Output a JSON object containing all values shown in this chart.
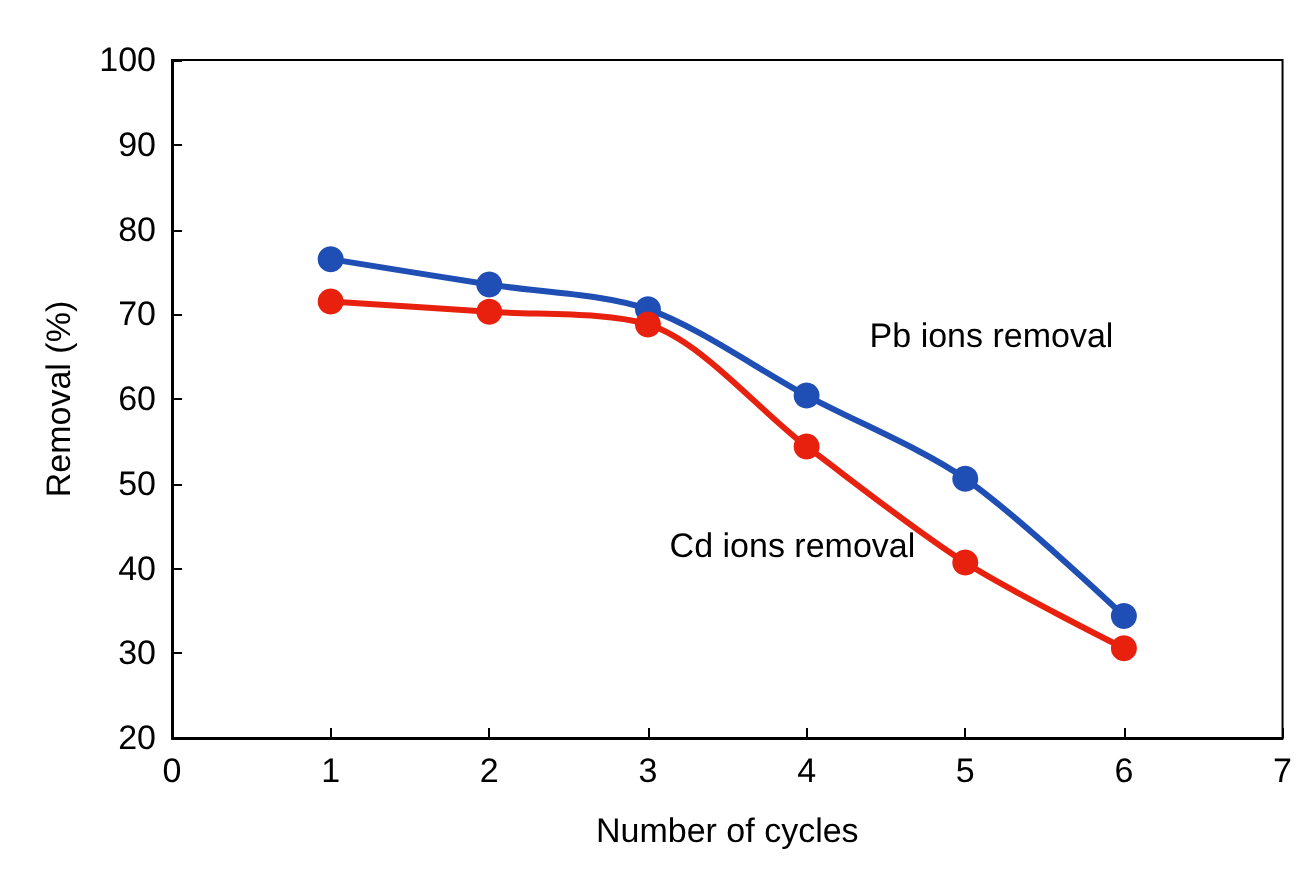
{
  "chart_data": {
    "type": "line",
    "xlabel": "Number of cycles",
    "ylabel": "Removal (%)",
    "x": [
      1,
      2,
      3,
      4,
      5,
      6
    ],
    "series": [
      {
        "name": "Pb ions removal",
        "color": "#1f4fb4",
        "values": [
          76.5,
          73.5,
          70.6,
          60.4,
          50.6,
          34.4
        ]
      },
      {
        "name": "Cd ions removal",
        "color": "#e8210f",
        "values": [
          71.5,
          70.3,
          68.8,
          54.4,
          40.7,
          30.6
        ]
      }
    ],
    "xlim": [
      0,
      7
    ],
    "xticks": [
      0,
      1,
      2,
      3,
      4,
      5,
      6,
      7
    ],
    "ylim": [
      20,
      100
    ],
    "yticks": [
      20,
      30,
      40,
      50,
      60,
      70,
      80,
      90,
      100
    ],
    "grid": false,
    "legend": false,
    "marker": "circle",
    "line_style": "solid"
  }
}
